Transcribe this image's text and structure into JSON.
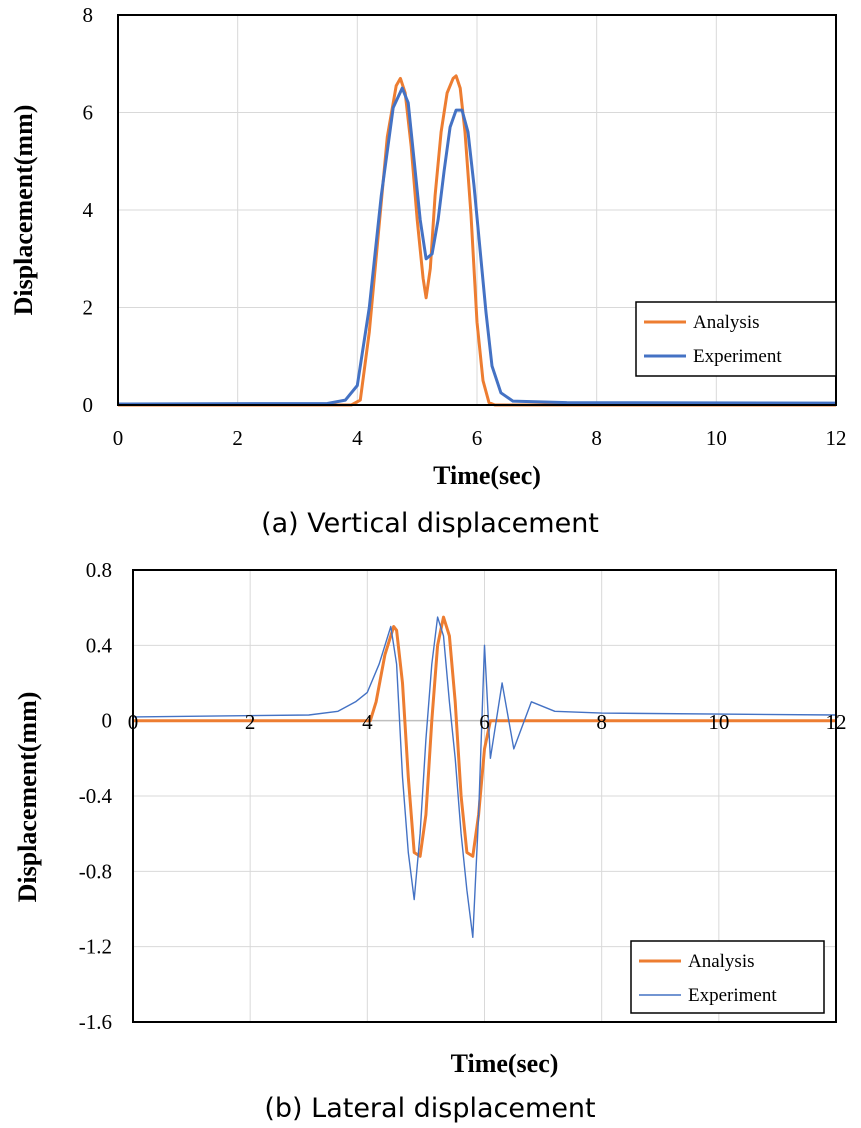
{
  "chart_data": [
    {
      "type": "line",
      "caption": "(a) Vertical displacement",
      "xlabel": "Time(sec)",
      "ylabel": "Displacement(mm)",
      "xlim": [
        0,
        12
      ],
      "ylim": [
        0,
        8
      ],
      "xticks": [
        "0",
        "2",
        "4",
        "6",
        "8",
        "10",
        "12"
      ],
      "yticks": [
        "0",
        "2",
        "4",
        "6",
        "8"
      ],
      "grid": true,
      "legend_position": "bottom-right",
      "series": [
        {
          "name": "Analysis",
          "color": "#ED7D31",
          "x": [
            0,
            3.9,
            4.05,
            4.2,
            4.35,
            4.5,
            4.65,
            4.72,
            4.8,
            4.9,
            5.0,
            5.1,
            5.15,
            5.22,
            5.3,
            5.4,
            5.5,
            5.6,
            5.65,
            5.72,
            5.8,
            5.9,
            6.0,
            6.1,
            6.2,
            6.3,
            12
          ],
          "y": [
            0,
            0,
            0.1,
            1.5,
            3.5,
            5.5,
            6.55,
            6.7,
            6.4,
            5.3,
            3.8,
            2.6,
            2.2,
            2.8,
            4.3,
            5.6,
            6.4,
            6.7,
            6.75,
            6.5,
            5.6,
            3.9,
            1.7,
            0.5,
            0.05,
            0,
            0
          ]
        },
        {
          "name": "Experiment",
          "color": "#4472C4",
          "x": [
            0,
            3.5,
            3.8,
            4.0,
            4.2,
            4.4,
            4.6,
            4.75,
            4.85,
            4.95,
            5.05,
            5.15,
            5.25,
            5.35,
            5.45,
            5.55,
            5.65,
            5.75,
            5.85,
            5.95,
            6.05,
            6.15,
            6.25,
            6.4,
            6.6,
            7.5,
            12
          ],
          "y": [
            0.02,
            0.03,
            0.1,
            0.4,
            2.0,
            4.3,
            6.1,
            6.5,
            6.2,
            5.0,
            3.8,
            3.0,
            3.1,
            3.8,
            4.8,
            5.7,
            6.05,
            6.05,
            5.6,
            4.5,
            3.2,
            1.9,
            0.8,
            0.25,
            0.08,
            0.05,
            0.04
          ]
        }
      ]
    },
    {
      "type": "line",
      "caption": "(b) Lateral displacement",
      "xlabel": "Time(sec)",
      "ylabel": "Displacement(mm)",
      "xlim": [
        0,
        12
      ],
      "ylim": [
        -1.6,
        0.8
      ],
      "xticks": [
        "0",
        "2",
        "4",
        "6",
        "8",
        "10",
        "12"
      ],
      "yticks": [
        "0.8",
        "0.4",
        "0",
        "-0.4",
        "-0.8",
        "-1.2",
        "-1.6"
      ],
      "grid": true,
      "legend_position": "bottom-right",
      "series": [
        {
          "name": "Analysis",
          "color": "#ED7D31",
          "x": [
            0,
            4.05,
            4.15,
            4.3,
            4.45,
            4.5,
            4.6,
            4.7,
            4.8,
            4.9,
            5.0,
            5.1,
            5.2,
            5.3,
            5.4,
            5.5,
            5.6,
            5.7,
            5.8,
            5.9,
            6.0,
            6.1,
            6.2,
            12
          ],
          "y": [
            0,
            0,
            0.1,
            0.35,
            0.5,
            0.48,
            0.2,
            -0.3,
            -0.7,
            -0.72,
            -0.5,
            0.0,
            0.4,
            0.55,
            0.45,
            0.1,
            -0.4,
            -0.7,
            -0.72,
            -0.5,
            -0.15,
            0.0,
            0.0,
            0.0
          ]
        },
        {
          "name": "Experiment",
          "color": "#4472C4",
          "x": [
            0,
            3.0,
            3.5,
            3.8,
            4.0,
            4.2,
            4.4,
            4.5,
            4.6,
            4.7,
            4.8,
            4.9,
            5.0,
            5.1,
            5.2,
            5.3,
            5.4,
            5.5,
            5.6,
            5.7,
            5.8,
            5.9,
            6.0,
            6.1,
            6.3,
            6.5,
            6.8,
            7.2,
            8.0,
            12
          ],
          "y": [
            0.02,
            0.03,
            0.05,
            0.1,
            0.15,
            0.3,
            0.5,
            0.3,
            -0.3,
            -0.7,
            -0.95,
            -0.6,
            -0.1,
            0.3,
            0.55,
            0.45,
            0.1,
            -0.2,
            -0.6,
            -0.9,
            -1.15,
            -0.5,
            0.4,
            -0.2,
            0.2,
            -0.15,
            0.1,
            0.05,
            0.04,
            0.03
          ]
        }
      ]
    }
  ]
}
